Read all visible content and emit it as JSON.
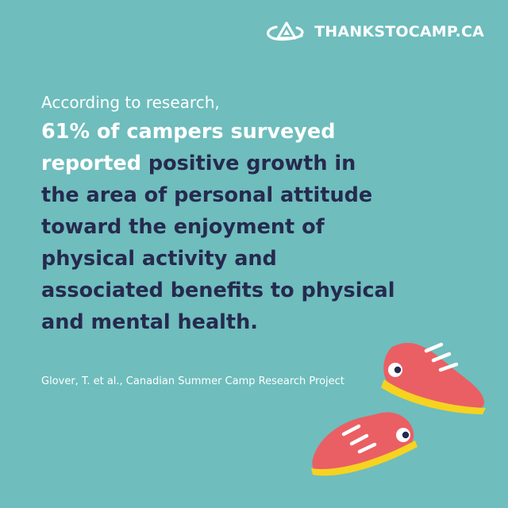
{
  "colors": {
    "background": "#6fbdbd",
    "white": "#ffffff",
    "navy": "#262a4f",
    "shoe_red": "#ea5f63",
    "sole_yellow": "#f5d320"
  },
  "brand": {
    "logo_icon": "campfire-tent-swoosh-icon",
    "name": "THANKSTOCAMP.CA"
  },
  "post": {
    "intro": "According to research,",
    "highlight": "61% of campers surveyed reported",
    "statement": "positive growth in the area of personal attitude toward the enjoyment of physical activity and associated benefits to physical and mental health.",
    "citation": "Glover, T. et al., Canadian Summer Camp Research Project"
  },
  "illustration": {
    "icon": "running-sneakers-icon"
  }
}
